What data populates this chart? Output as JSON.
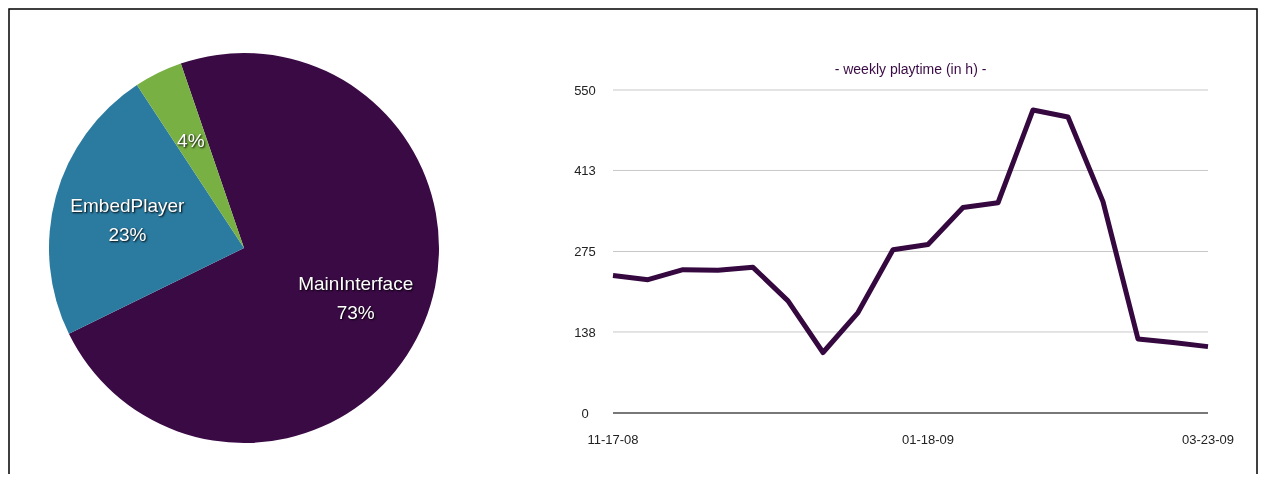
{
  "chart_data": [
    {
      "type": "pie",
      "categories": [
        "MainInterface",
        "EmbedPlayer",
        null
      ],
      "values": [
        73,
        23,
        4
      ],
      "colors": [
        "#3a0a45",
        "#2b7aa0",
        "#78b043"
      ],
      "value_labels": [
        "73%",
        "23%",
        "4%"
      ]
    },
    {
      "type": "line",
      "title": "- weekly playtime (in h) -",
      "categories": [
        "11-17-08",
        null,
        null,
        null,
        null,
        null,
        null,
        null,
        null,
        "01-18-09",
        null,
        null,
        null,
        null,
        null,
        null,
        null,
        "03-23-09"
      ],
      "series": [
        {
          "color": "#35083f",
          "values": [
            234,
            227,
            244,
            243,
            248,
            191,
            103,
            171,
            278,
            287,
            350,
            358,
            516,
            504,
            360,
            126,
            120,
            113
          ]
        }
      ],
      "ylim": [
        0,
        550
      ],
      "yticks": [
        0,
        138,
        275,
        413,
        550
      ],
      "grid": "y",
      "marker": "none",
      "line_style": "solid"
    }
  ]
}
